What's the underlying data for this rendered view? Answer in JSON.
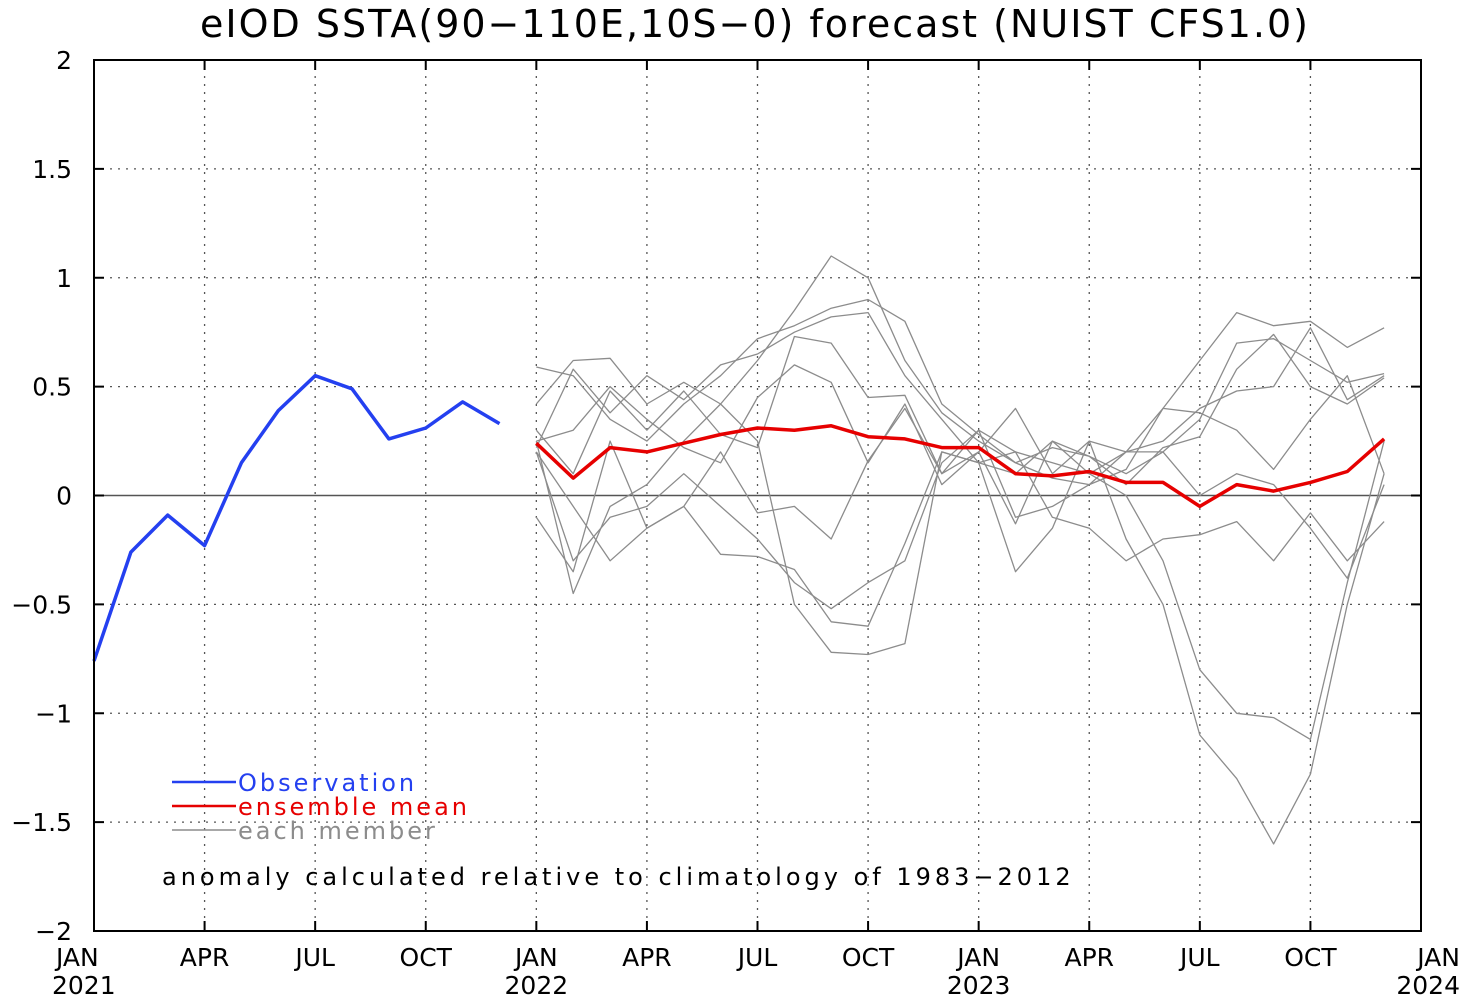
{
  "chart_data": {
    "type": "line",
    "title": "eIOD SSTA(90−110E,10S−0) forecast (NUIST CFS1.0)",
    "ylim": [
      -2,
      2
    ],
    "y_ticks": [
      2,
      1.5,
      1,
      0.5,
      0,
      -0.5,
      -1,
      -1.5,
      -2
    ],
    "y_tick_labels": [
      "2",
      "1.5",
      "1",
      "0.5",
      "0",
      "−0.5",
      "−1",
      "−1.5",
      "−2"
    ],
    "x_range": [
      "2021-01",
      "2024-01"
    ],
    "x_ticks": [
      {
        "x": "2021-01",
        "label": "JAN",
        "year": "2021"
      },
      {
        "x": "2021-04",
        "label": "APR",
        "year": ""
      },
      {
        "x": "2021-07",
        "label": "JUL",
        "year": ""
      },
      {
        "x": "2021-10",
        "label": "OCT",
        "year": ""
      },
      {
        "x": "2022-01",
        "label": "JAN",
        "year": "2022"
      },
      {
        "x": "2022-04",
        "label": "APR",
        "year": ""
      },
      {
        "x": "2022-07",
        "label": "JUL",
        "year": ""
      },
      {
        "x": "2022-10",
        "label": "OCT",
        "year": ""
      },
      {
        "x": "2023-01",
        "label": "JAN",
        "year": "2023"
      },
      {
        "x": "2023-04",
        "label": "APR",
        "year": ""
      },
      {
        "x": "2023-07",
        "label": "JUL",
        "year": ""
      },
      {
        "x": "2023-10",
        "label": "OCT",
        "year": ""
      },
      {
        "x": "2024-01",
        "label": "JAN",
        "year": "2024"
      }
    ],
    "grid": true,
    "zero_line": true,
    "colors": {
      "observation": "#2440f0",
      "ensemble_mean": "#e60000",
      "member": "#8c8c8c",
      "grid": "#555555"
    },
    "legend": {
      "placement": "bottom-left",
      "entries": [
        {
          "key": "observation",
          "label": "Observation"
        },
        {
          "key": "ensemble_mean",
          "label": "ensemble mean"
        },
        {
          "key": "member",
          "label": "each member"
        }
      ]
    },
    "annotation": "anomaly calculated relative to climatology of 1983−2012",
    "observation": {
      "x": [
        "2021-01",
        "2021-02",
        "2021-03",
        "2021-04",
        "2021-05",
        "2021-06",
        "2021-07",
        "2021-08",
        "2021-09",
        "2021-10",
        "2021-11",
        "2021-12"
      ],
      "values": [
        -0.76,
        -0.26,
        -0.09,
        -0.23,
        0.15,
        0.39,
        0.55,
        0.49,
        0.26,
        0.31,
        0.43,
        0.33
      ]
    },
    "forecast_x": [
      "2022-01",
      "2022-02",
      "2022-03",
      "2022-04",
      "2022-05",
      "2022-06",
      "2022-07",
      "2022-08",
      "2022-09",
      "2022-10",
      "2022-11",
      "2022-12",
      "2023-01",
      "2023-02",
      "2023-03",
      "2023-04",
      "2023-05",
      "2023-06",
      "2023-07",
      "2023-08",
      "2023-09",
      "2023-10",
      "2023-11",
      "2023-12"
    ],
    "ensemble_mean": {
      "values": [
        0.24,
        0.08,
        0.22,
        0.2,
        0.24,
        0.28,
        0.31,
        0.3,
        0.32,
        0.27,
        0.26,
        0.22,
        0.22,
        0.1,
        0.09,
        0.11,
        0.06,
        0.06,
        -0.05,
        0.05,
        0.02,
        0.06,
        0.11,
        0.26
      ]
    },
    "members": [
      {
        "values": [
          0.42,
          0.62,
          0.63,
          0.42,
          0.52,
          0.42,
          0.62,
          0.85,
          1.1,
          1.0,
          0.62,
          0.38,
          0.25,
          0.15,
          0.08,
          0.05,
          0.12,
          0.4,
          0.62,
          0.84,
          0.78,
          0.8,
          0.68,
          0.77
        ]
      },
      {
        "values": [
          0.59,
          0.55,
          0.35,
          0.25,
          0.42,
          0.55,
          0.72,
          0.78,
          0.86,
          0.9,
          0.8,
          0.42,
          0.28,
          0.15,
          0.22,
          0.18,
          0.1,
          0.2,
          0.35,
          0.7,
          0.72,
          0.62,
          0.52,
          0.56
        ]
      },
      {
        "values": [
          0.22,
          0.58,
          0.38,
          0.55,
          0.44,
          0.6,
          0.65,
          0.75,
          0.82,
          0.84,
          0.55,
          0.35,
          0.15,
          0.1,
          0.25,
          0.18,
          0.05,
          0.22,
          0.27,
          0.58,
          0.74,
          0.5,
          0.42,
          0.54
        ]
      },
      {
        "values": [
          0.3,
          0.1,
          0.48,
          0.3,
          0.48,
          0.28,
          0.22,
          0.73,
          0.7,
          0.45,
          0.46,
          0.1,
          0.3,
          0.2,
          0.15,
          0.1,
          0.2,
          0.25,
          0.4,
          0.48,
          0.5,
          0.77,
          0.44,
          0.55
        ]
      },
      {
        "values": [
          0.25,
          0.3,
          0.5,
          0.35,
          0.22,
          0.15,
          0.45,
          0.6,
          0.52,
          0.15,
          0.42,
          0.05,
          0.2,
          0.4,
          0.1,
          0.25,
          0.2,
          0.4,
          0.38,
          0.3,
          0.12,
          0.35,
          0.55,
          0.1
        ]
      },
      {
        "values": [
          0.2,
          -0.3,
          -0.1,
          -0.05,
          0.1,
          -0.05,
          -0.2,
          -0.4,
          -0.52,
          -0.4,
          -0.3,
          0.15,
          0.3,
          -0.1,
          -0.05,
          0.05,
          0.2,
          0.2,
          0.0,
          0.1,
          0.05,
          -0.15,
          -0.38,
          0.05
        ]
      },
      {
        "values": [
          0.25,
          -0.45,
          -0.05,
          0.05,
          0.25,
          0.42,
          0.25,
          -0.5,
          -0.72,
          -0.73,
          -0.68,
          0.2,
          0.15,
          -0.35,
          -0.15,
          0.25,
          -0.2,
          -0.5,
          -1.1,
          -1.3,
          -1.6,
          -1.28,
          -0.5,
          0.1
        ]
      },
      {
        "values": [
          0.2,
          -0.05,
          -0.3,
          -0.15,
          -0.05,
          0.2,
          -0.08,
          -0.05,
          -0.2,
          0.16,
          0.4,
          0.1,
          0.2,
          -0.13,
          0.25,
          0.1,
          0.0,
          -0.3,
          -0.8,
          -1.0,
          -1.02,
          -1.12,
          -0.4,
          0.25
        ]
      },
      {
        "values": [
          -0.1,
          -0.35,
          0.25,
          -0.15,
          -0.05,
          -0.27,
          -0.28,
          -0.34,
          -0.58,
          -0.6,
          -0.22,
          0.2,
          0.15,
          0.2,
          -0.1,
          -0.15,
          -0.3,
          -0.2,
          -0.18,
          -0.12,
          -0.3,
          -0.08,
          -0.3,
          -0.12
        ]
      }
    ]
  }
}
